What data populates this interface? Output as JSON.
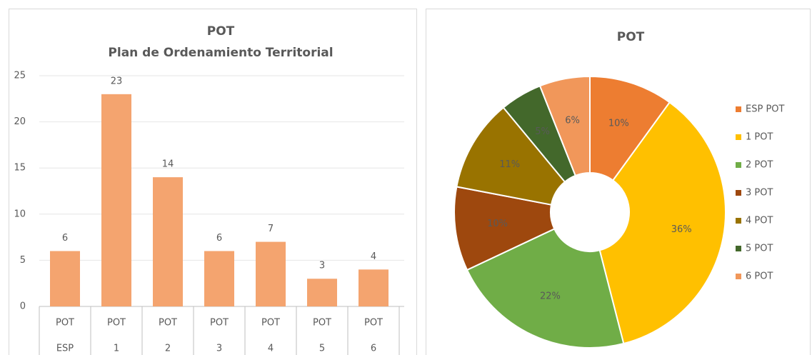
{
  "chart_data": [
    {
      "type": "bar",
      "title": "POT",
      "subtitle": "Plan de Ordenamiento Territorial",
      "categories": [
        [
          "POT",
          "ESP"
        ],
        [
          "POT",
          "1"
        ],
        [
          "POT",
          "2"
        ],
        [
          "POT",
          "3"
        ],
        [
          "POT",
          "4"
        ],
        [
          "POT",
          "5"
        ],
        [
          "POT",
          "6"
        ]
      ],
      "values": [
        6,
        23,
        14,
        6,
        7,
        3,
        4
      ],
      "color": "#f4a46f",
      "ylim": [
        0,
        25
      ],
      "yticks": [
        0,
        5,
        10,
        15,
        20,
        25
      ],
      "grid": true
    },
    {
      "type": "pie",
      "title": "POT",
      "categories": [
        "ESP POT",
        "1 POT",
        "2 POT",
        "3 POT",
        "4 POT",
        "5 POT",
        "6 POT"
      ],
      "values": [
        10,
        36,
        22,
        10,
        11,
        5,
        6
      ],
      "value_labels": [
        "10%",
        "36%",
        "22%",
        "10%",
        "11%",
        "5%",
        "6%"
      ],
      "colors": [
        "#ed7d31",
        "#ffc000",
        "#70ad47",
        "#9e480e",
        "#997300",
        "#43682b",
        "#f1975a"
      ],
      "legend": "right"
    }
  ]
}
